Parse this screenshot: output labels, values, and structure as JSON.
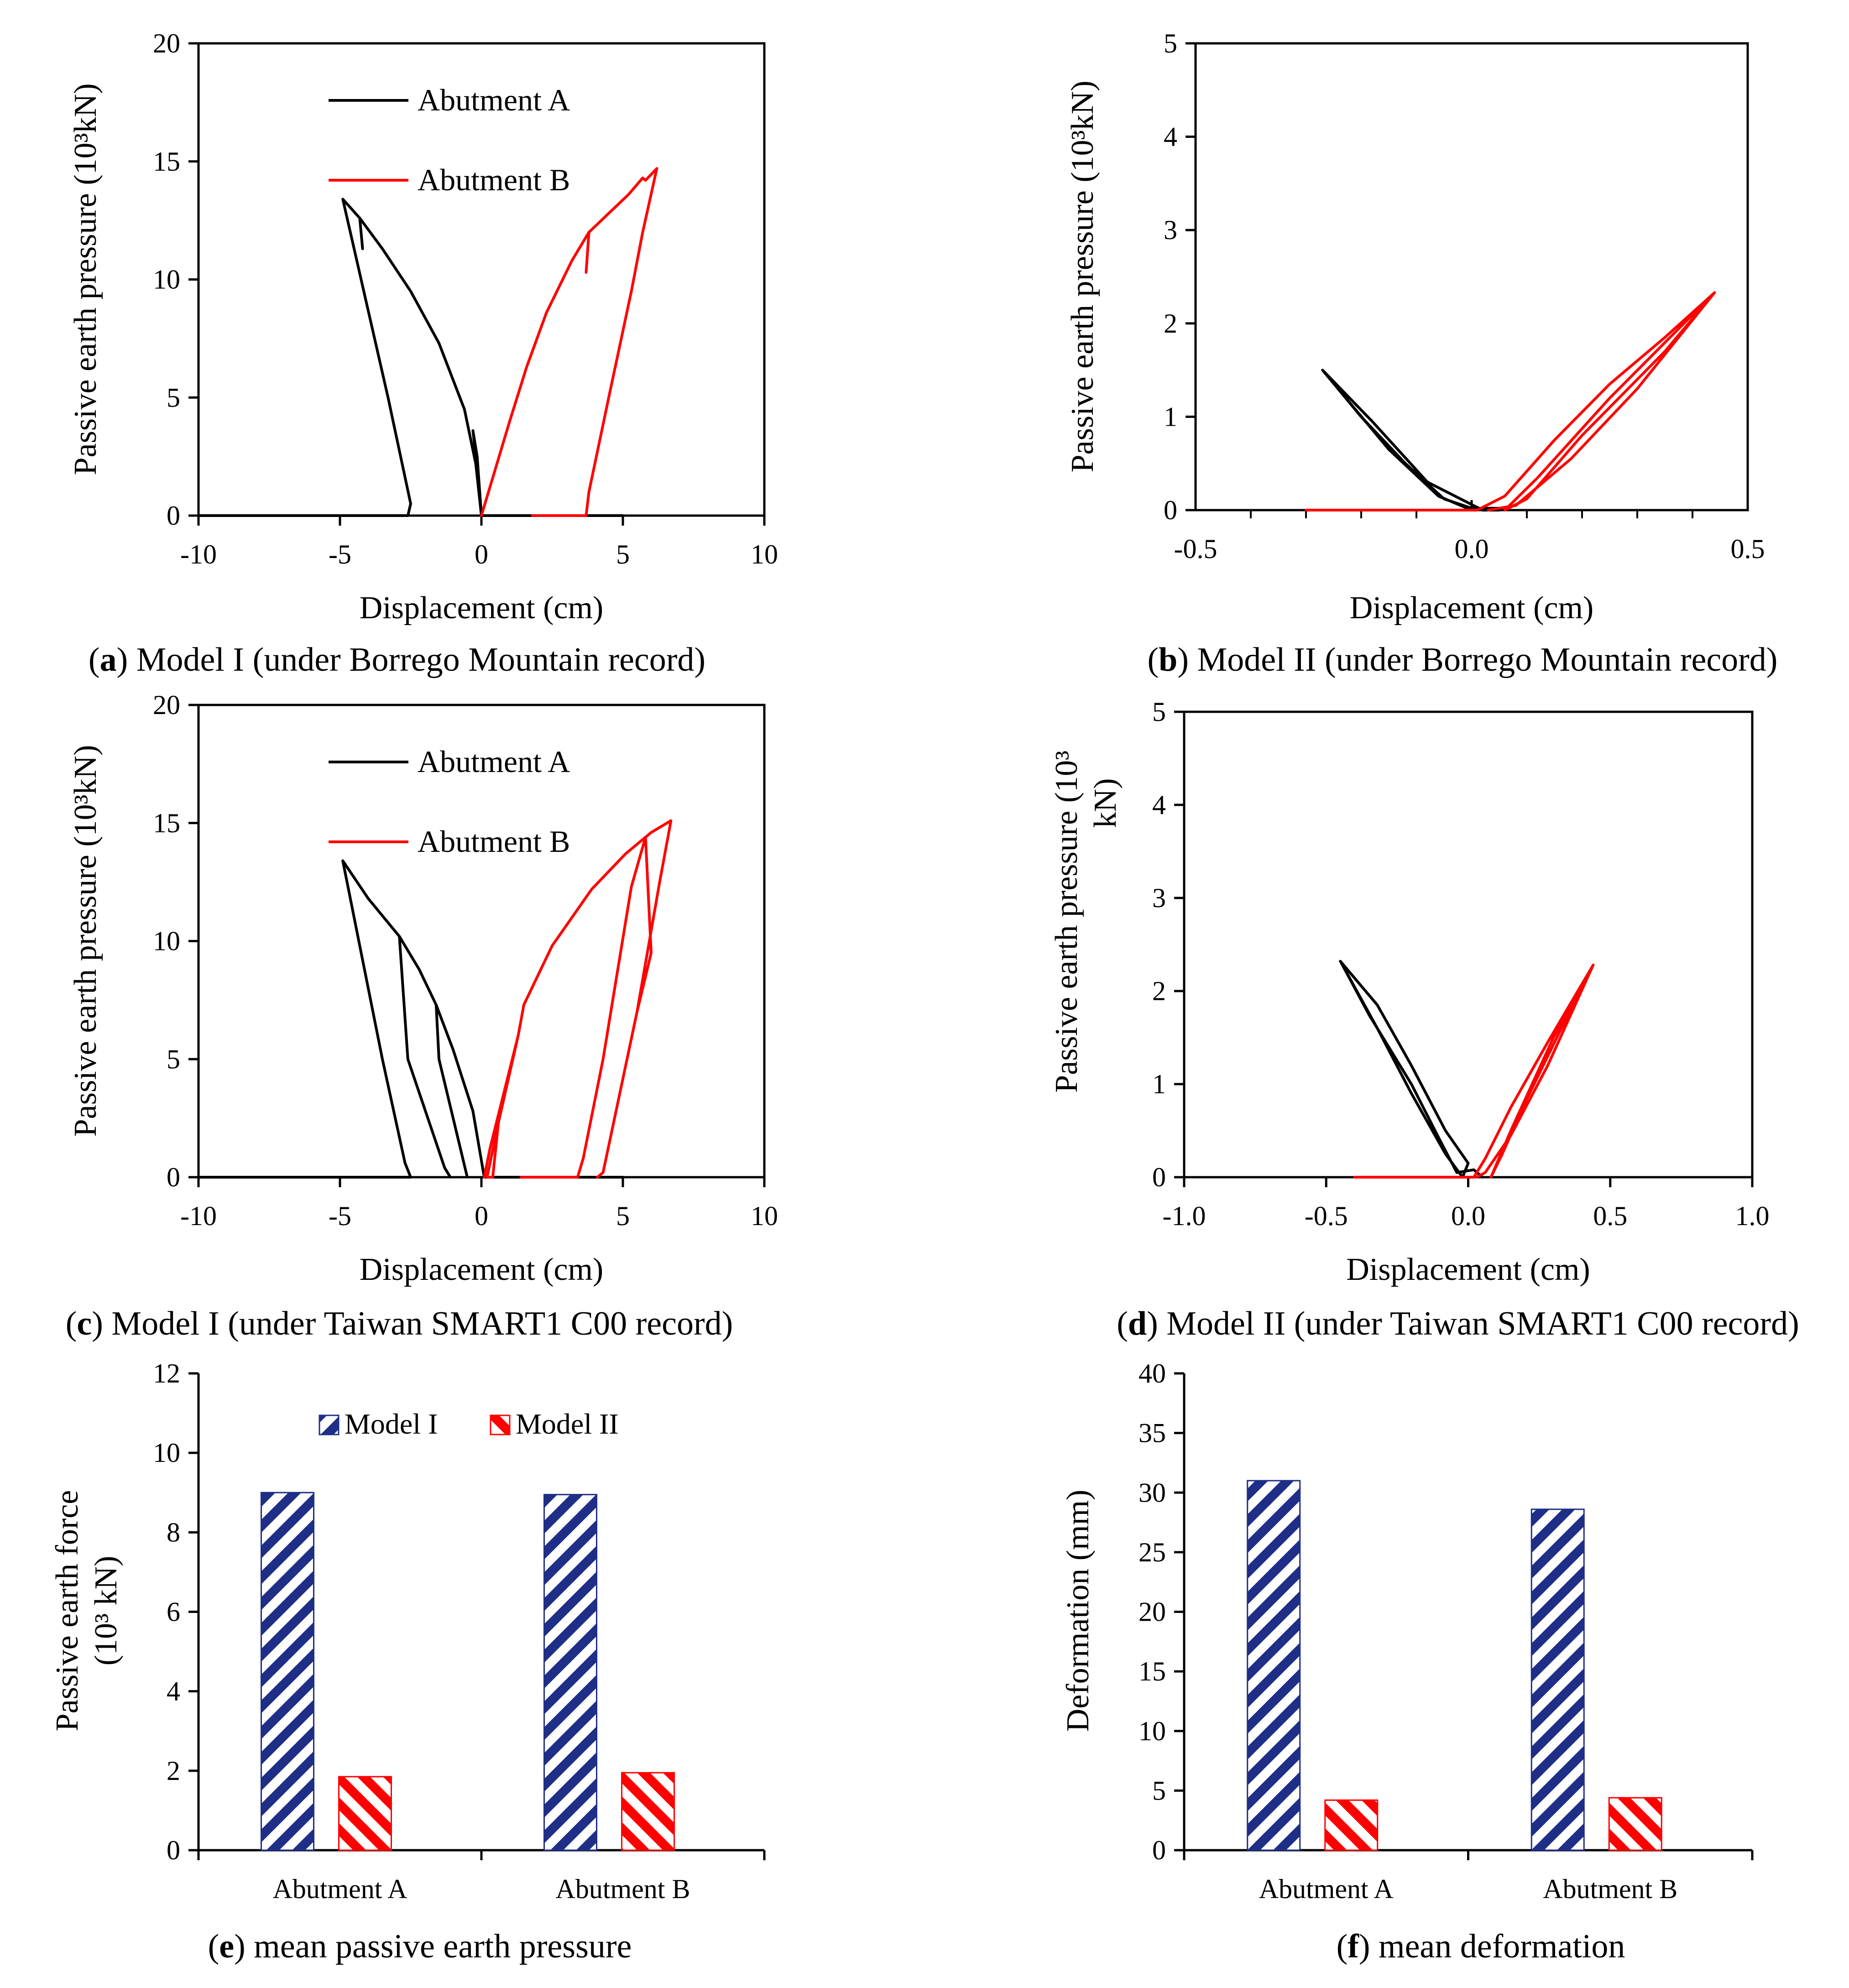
{
  "colors": {
    "black": "#000000",
    "red": "#ff0000",
    "blue": "#1f2e86"
  },
  "chart_data": [
    {
      "id": "a",
      "type": "line",
      "caption_letter": "a",
      "caption": ") Model I (under Borrego Mountain record)",
      "xlabel": "Displacement (cm)",
      "ylabel": "Passive earth pressure (10³kN)",
      "xlim": [
        -10,
        10
      ],
      "ylim": [
        0,
        20
      ],
      "xticks": [
        -10,
        -5,
        0,
        5,
        10
      ],
      "xtick_labels": [
        "-10",
        "-5",
        "0",
        "5",
        "10"
      ],
      "yticks": [
        0,
        5,
        10,
        15,
        20
      ],
      "ytick_labels": [
        "0",
        "5",
        "10",
        "15",
        "20"
      ],
      "legend": [
        "Abutment A",
        "Abutment B"
      ],
      "series": [
        {
          "name": "Abutment A",
          "color": "#000000",
          "points": [
            [
              -10,
              0
            ],
            [
              -2.6,
              0
            ],
            [
              -2.5,
              0.5
            ],
            [
              -3.3,
              5
            ],
            [
              -4.9,
              13.4
            ],
            [
              -4.3,
              12.6
            ],
            [
              -4.2,
              11.3
            ],
            [
              -4.3,
              12.6
            ],
            [
              -3.5,
              11.3
            ],
            [
              -2.5,
              9.5
            ],
            [
              -1.5,
              7.3
            ],
            [
              -0.6,
              4.5
            ],
            [
              -0.2,
              2.2
            ],
            [
              0,
              0
            ],
            [
              -0.15,
              2.5
            ],
            [
              -0.3,
              3.6
            ],
            [
              -0.15,
              2.0
            ],
            [
              0,
              0
            ],
            [
              5,
              0
            ]
          ]
        },
        {
          "name": "Abutment B",
          "color": "#ff0000",
          "points": [
            [
              1.8,
              0
            ],
            [
              3.7,
              0
            ],
            [
              3.8,
              1
            ],
            [
              4.5,
              5
            ],
            [
              5.3,
              9.5
            ],
            [
              5.7,
              12
            ],
            [
              6.2,
              14.7
            ],
            [
              5.8,
              14.2
            ],
            [
              5.7,
              14.3
            ],
            [
              5.2,
              13.6
            ],
            [
              4.5,
              12.8
            ],
            [
              3.8,
              12.0
            ],
            [
              3.7,
              10.3
            ],
            [
              3.8,
              12.0
            ],
            [
              3.2,
              10.8
            ],
            [
              2.3,
              8.6
            ],
            [
              1.6,
              6.3
            ],
            [
              1.0,
              4.0
            ],
            [
              0.4,
              1.6
            ],
            [
              0,
              0
            ]
          ]
        }
      ]
    },
    {
      "id": "b",
      "type": "line",
      "caption_letter": "b",
      "caption": ") Model II (under Borrego Mountain record)",
      "xlabel": "Displacement (cm)",
      "ylabel": "Passive earth pressure (10³kN)",
      "xlim": [
        -0.5,
        0.5
      ],
      "ylim": [
        0,
        5
      ],
      "xticks": [
        -0.5,
        0,
        0.5
      ],
      "xtick_labels": [
        "-0.5",
        "0.0",
        "0.5"
      ],
      "xminor": [
        -0.4,
        -0.3,
        -0.2,
        -0.1,
        0.1,
        0.2,
        0.3,
        0.4
      ],
      "yticks": [
        0,
        1,
        2,
        3,
        4,
        5
      ],
      "ytick_labels": [
        "0",
        "1",
        "2",
        "3",
        "4",
        "5"
      ],
      "legend": [],
      "series": [
        {
          "name": "",
          "color": "#000000",
          "points": [
            [
              -0.27,
              1.5
            ],
            [
              -0.2,
              1.0
            ],
            [
              -0.12,
              0.5
            ],
            [
              -0.05,
              0.12
            ],
            [
              0,
              0.02
            ],
            [
              0.05,
              0.02
            ],
            [
              0,
              0
            ],
            [
              -0.06,
              0.15
            ],
            [
              -0.15,
              0.65
            ],
            [
              -0.27,
              1.5
            ],
            [
              -0.18,
              0.95
            ],
            [
              -0.08,
              0.3
            ],
            [
              0.02,
              0
            ],
            [
              0.05,
              0
            ]
          ]
        },
        {
          "name": "",
          "color": "#ff0000",
          "points": [
            [
              -0.3,
              0
            ],
            [
              0.01,
              0
            ],
            [
              0.06,
              0.15
            ],
            [
              0.15,
              0.75
            ],
            [
              0.25,
              1.35
            ],
            [
              0.35,
              1.85
            ],
            [
              0.44,
              2.33
            ],
            [
              0.35,
              1.7
            ],
            [
              0.2,
              0.8
            ],
            [
              0.1,
              0.12
            ],
            [
              0.06,
              0
            ],
            [
              0.12,
              0.35
            ],
            [
              0.25,
              1.2
            ],
            [
              0.44,
              2.33
            ],
            [
              0.3,
              1.3
            ],
            [
              0.18,
              0.55
            ],
            [
              0.08,
              0.05
            ],
            [
              0.03,
              0
            ]
          ]
        }
      ]
    },
    {
      "id": "c",
      "type": "line",
      "caption_letter": "c",
      "caption": ") Model I (under Taiwan SMART1 C00 record)",
      "xlabel": "Displacement (cm)",
      "ylabel": "Passive earth pressure (10³kN)",
      "xlim": [
        -10,
        10
      ],
      "ylim": [
        0,
        20
      ],
      "xticks": [
        -10,
        -5,
        0,
        5,
        10
      ],
      "xtick_labels": [
        "-10",
        "-5",
        "0",
        "5",
        "10"
      ],
      "yticks": [
        0,
        5,
        10,
        15,
        20
      ],
      "ytick_labels": [
        "0",
        "5",
        "10",
        "15",
        "20"
      ],
      "legend": [
        "Abutment A",
        "Abutment B"
      ],
      "series": [
        {
          "name": "Abutment A",
          "color": "#000000",
          "points": [
            [
              -10,
              0
            ],
            [
              -2.5,
              0
            ],
            [
              -2.7,
              0.6
            ],
            [
              -3.5,
              5
            ],
            [
              -4.9,
              13.4
            ],
            [
              -4.0,
              11.8
            ],
            [
              -2.9,
              10.2
            ],
            [
              -2.6,
              5
            ],
            [
              -1.3,
              0.4
            ],
            [
              -1.1,
              0
            ],
            [
              -1.3,
              0.4
            ],
            [
              -2.6,
              5
            ],
            [
              -2.9,
              10.2
            ],
            [
              -2.2,
              8.8
            ],
            [
              -1.6,
              7.3
            ],
            [
              -1.5,
              5
            ],
            [
              -0.5,
              0
            ],
            [
              -1.5,
              5
            ],
            [
              -1.6,
              7.3
            ],
            [
              -1.0,
              5.4
            ],
            [
              -0.3,
              2.8
            ],
            [
              0.1,
              0
            ],
            [
              5,
              0
            ]
          ]
        },
        {
          "name": "Abutment B",
          "color": "#ff0000",
          "points": [
            [
              1.4,
              0
            ],
            [
              3.4,
              0
            ],
            [
              3.6,
              0.8
            ],
            [
              4.3,
              5
            ],
            [
              5.3,
              12.3
            ],
            [
              5.8,
              14.4
            ],
            [
              6.0,
              14.6
            ],
            [
              6.7,
              15.1
            ],
            [
              6.3,
              12.5
            ],
            [
              5.5,
              7
            ],
            [
              4.3,
              0.2
            ],
            [
              4.1,
              0
            ],
            [
              4.3,
              0.2
            ],
            [
              5.5,
              7
            ],
            [
              6.0,
              9.5
            ],
            [
              5.8,
              14.4
            ],
            [
              5.1,
              13.7
            ],
            [
              3.9,
              12.2
            ],
            [
              2.5,
              9.8
            ],
            [
              1.5,
              7.3
            ],
            [
              1.3,
              6.0
            ],
            [
              0.6,
              2.3
            ],
            [
              0.4,
              0
            ],
            [
              0.2,
              0
            ],
            [
              0.6,
              2.3
            ],
            [
              1.3,
              6.0
            ],
            [
              0.8,
              3.6
            ],
            [
              0.3,
              1.2
            ],
            [
              0.1,
              0
            ]
          ]
        }
      ]
    },
    {
      "id": "d",
      "type": "line",
      "caption_letter": "d",
      "caption": ") Model II (under Taiwan SMART1 C00 record)",
      "xlabel": "Displacement (cm)",
      "ylabel_lines": [
        "Passive earth pressure (10³",
        "kN)"
      ],
      "xlim": [
        -1,
        1
      ],
      "ylim": [
        0,
        5
      ],
      "xticks": [
        -1,
        -0.5,
        0,
        0.5,
        1
      ],
      "xtick_labels": [
        "-1.0",
        "-0.5",
        "0.0",
        "0.5",
        "1.0"
      ],
      "yticks": [
        0,
        1,
        2,
        3,
        4,
        5
      ],
      "ytick_labels": [
        "0",
        "1",
        "2",
        "3",
        "4",
        "5"
      ],
      "legend": [],
      "series": [
        {
          "name": "",
          "color": "#000000",
          "points": [
            [
              -0.45,
              2.32
            ],
            [
              -0.32,
              1.6
            ],
            [
              -0.2,
              0.9
            ],
            [
              -0.08,
              0.25
            ],
            [
              -0.02,
              0
            ],
            [
              0,
              0.15
            ],
            [
              -0.08,
              0.5
            ],
            [
              -0.2,
              1.2
            ],
            [
              -0.32,
              1.85
            ],
            [
              -0.45,
              2.32
            ],
            [
              -0.35,
              1.75
            ],
            [
              -0.2,
              1.0
            ],
            [
              -0.1,
              0.4
            ],
            [
              -0.04,
              0.05
            ],
            [
              0.02,
              0.08
            ],
            [
              0.05,
              0
            ]
          ]
        },
        {
          "name": "",
          "color": "#ff0000",
          "points": [
            [
              -0.4,
              0
            ],
            [
              0.02,
              0
            ],
            [
              0.06,
              0.2
            ],
            [
              0.15,
              0.75
            ],
            [
              0.28,
              1.45
            ],
            [
              0.44,
              2.28
            ],
            [
              0.32,
              1.55
            ],
            [
              0.2,
              0.8
            ],
            [
              0.12,
              0.25
            ],
            [
              0.08,
              0
            ],
            [
              0.15,
              0.5
            ],
            [
              0.3,
              1.5
            ],
            [
              0.44,
              2.28
            ],
            [
              0.28,
              1.2
            ],
            [
              0.15,
              0.45
            ],
            [
              0.06,
              0.05
            ],
            [
              0.03,
              0
            ]
          ]
        }
      ]
    },
    {
      "id": "e",
      "type": "bar",
      "caption_letter": "e",
      "caption": ") mean passive earth pressure",
      "ylabel_lines": [
        "Passive earth force",
        "(10³ kN)"
      ],
      "categories": [
        "Abutment A",
        "Abutment B"
      ],
      "ylim": [
        0,
        12
      ],
      "yticks": [
        0,
        2,
        4,
        6,
        8,
        10,
        12
      ],
      "ytick_labels": [
        "0",
        "2",
        "4",
        "6",
        "8",
        "10",
        "12"
      ],
      "series": [
        {
          "name": "Model I",
          "values": [
            9.0,
            8.95
          ]
        },
        {
          "name": "Model II",
          "values": [
            1.85,
            1.95
          ]
        }
      ]
    },
    {
      "id": "f",
      "type": "bar",
      "caption_letter": "f",
      "caption": ") mean deformation",
      "ylabel": "Deformation (mm)",
      "categories": [
        "Abutment A",
        "Abutment B"
      ],
      "ylim": [
        0,
        40
      ],
      "yticks": [
        0,
        5,
        10,
        15,
        20,
        25,
        30,
        35,
        40
      ],
      "ytick_labels": [
        "0",
        "5",
        "10",
        "15",
        "20",
        "25",
        "30",
        "35",
        "40"
      ],
      "series": [
        {
          "name": "Model I",
          "values": [
            31,
            28.6
          ]
        },
        {
          "name": "Model II",
          "values": [
            4.2,
            4.4
          ]
        }
      ]
    }
  ]
}
